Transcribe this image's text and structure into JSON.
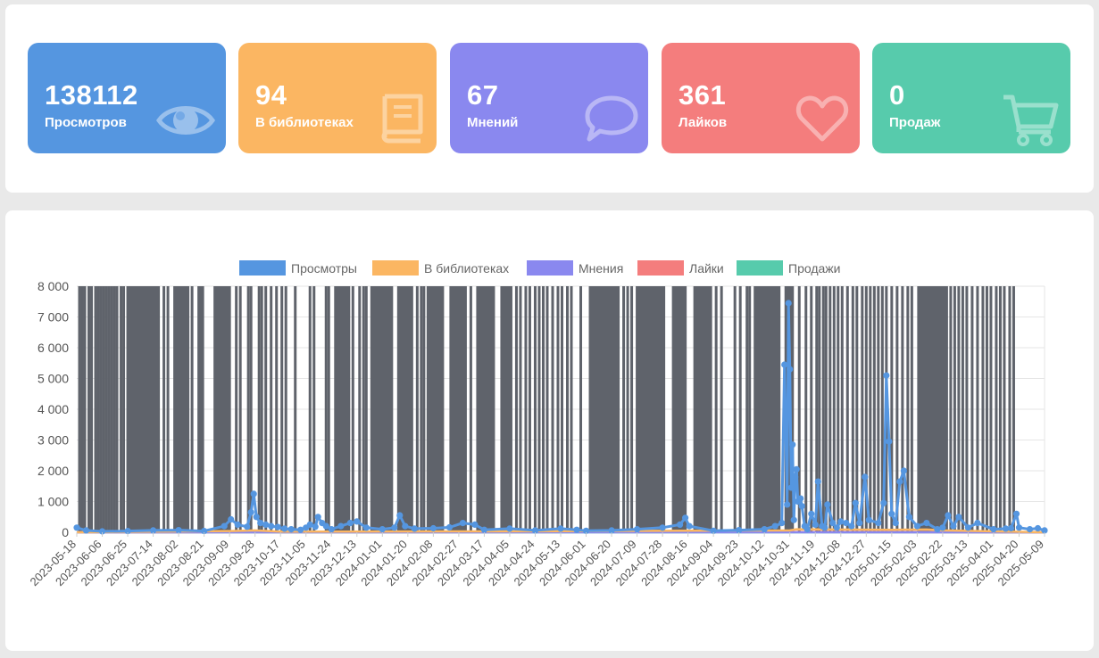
{
  "stats": [
    {
      "value": "138112",
      "label": "Просмотров",
      "color": "#5596e0",
      "icon": "eye-icon"
    },
    {
      "value": "94",
      "label": "В библиотеках",
      "color": "#fbb662",
      "icon": "book-icon"
    },
    {
      "value": "67",
      "label": "Мнений",
      "color": "#8a88ef",
      "icon": "chat-bubble-icon"
    },
    {
      "value": "361",
      "label": "Лайков",
      "color": "#f47d7d",
      "icon": "heart-icon"
    },
    {
      "value": "0",
      "label": "Продаж",
      "color": "#57cbac",
      "icon": "cart-icon"
    }
  ],
  "chart_data": {
    "type": "line",
    "legend": [
      {
        "name": "Просмотры",
        "color": "#5596e0"
      },
      {
        "name": "В библиотеках",
        "color": "#fbb662"
      },
      {
        "name": "Мнения",
        "color": "#8a88ef"
      },
      {
        "name": "Лайки",
        "color": "#f47d7d"
      },
      {
        "name": "Продажи",
        "color": "#57cbac"
      }
    ],
    "legend_position": "top",
    "grid": true,
    "ylim": [
      0,
      8000
    ],
    "y_ticks": [
      "8 000",
      "7 000",
      "6 000",
      "5 000",
      "4 000",
      "3 000",
      "2 000",
      "1 000",
      "0"
    ],
    "x_range": [
      "2023-05-18",
      "2025-05-09"
    ],
    "x_ticks": [
      "2023-05-18",
      "2023-06-06",
      "2023-06-25",
      "2023-07-14",
      "2023-08-02",
      "2023-08-21",
      "2023-09-09",
      "2023-09-28",
      "2023-10-17",
      "2023-11-05",
      "2023-11-24",
      "2023-12-13",
      "2024-01-01",
      "2024-01-20",
      "2024-02-08",
      "2024-02-27",
      "2024-03-17",
      "2024-04-05",
      "2024-04-24",
      "2024-05-13",
      "2024-06-01",
      "2024-06-20",
      "2024-07-09",
      "2024-07-28",
      "2024-08-16",
      "2024-09-04",
      "2024-09-23",
      "2024-10-12",
      "2024-10-31",
      "2024-11-19",
      "2024-12-08",
      "2024-12-27",
      "2025-01-15",
      "2025-02-03",
      "2025-02-22",
      "2025-03-13",
      "2025-04-01",
      "2025-04-20",
      "2025-05-09"
    ],
    "overlay_color": "#5f636b",
    "overlay_dense_ranges": [
      [
        "2023-06-24",
        "2023-07-19"
      ],
      [
        "2023-07-29",
        "2023-08-10"
      ],
      [
        "2023-08-16",
        "2023-08-21"
      ],
      [
        "2023-08-28",
        "2023-09-10"
      ],
      [
        "2023-11-26",
        "2023-12-08"
      ],
      [
        "2023-12-23",
        "2024-01-09"
      ],
      [
        "2024-01-12",
        "2024-01-24"
      ],
      [
        "2024-02-03",
        "2024-02-16"
      ],
      [
        "2024-02-20",
        "2024-03-04"
      ],
      [
        "2024-03-11",
        "2024-03-25"
      ],
      [
        "2024-03-29",
        "2024-04-07"
      ],
      [
        "2024-06-03",
        "2024-06-26"
      ],
      [
        "2024-07-08",
        "2024-07-30"
      ],
      [
        "2024-08-04",
        "2024-08-15"
      ],
      [
        "2024-08-20",
        "2024-09-03"
      ],
      [
        "2024-10-04",
        "2024-10-24"
      ],
      [
        "2024-10-27",
        "2024-11-03"
      ],
      [
        "2025-02-03",
        "2025-02-26"
      ]
    ],
    "overlay_lines": [
      "2023-05-20",
      "2023-05-22",
      "2023-05-24",
      "2023-05-27",
      "2023-05-29",
      "2023-06-01",
      "2023-06-03",
      "2023-06-05",
      "2023-06-07",
      "2023-06-09",
      "2023-06-11",
      "2023-06-13",
      "2023-06-15",
      "2023-06-17",
      "2023-06-20",
      "2023-06-22",
      "2023-07-22",
      "2023-07-25",
      "2023-08-12",
      "2023-09-14",
      "2023-09-17",
      "2023-09-23",
      "2023-09-25",
      "2023-10-01",
      "2023-10-03",
      "2023-10-06",
      "2023-10-10",
      "2023-10-14",
      "2023-10-18",
      "2023-10-21",
      "2023-10-28",
      "2023-11-08",
      "2023-11-11",
      "2023-11-20",
      "2023-11-22",
      "2023-12-10",
      "2023-12-15",
      "2023-12-18",
      "2023-12-20",
      "2024-01-27",
      "2024-01-30",
      "2024-02-01",
      "2024-03-07",
      "2024-04-10",
      "2024-04-13",
      "2024-04-17",
      "2024-04-20",
      "2024-04-24",
      "2024-04-27",
      "2024-04-30",
      "2024-05-03",
      "2024-05-07",
      "2024-05-11",
      "2024-05-14",
      "2024-05-18",
      "2024-05-21",
      "2024-05-28",
      "2024-06-29",
      "2024-07-02",
      "2024-07-05",
      "2024-09-06",
      "2024-09-10",
      "2024-09-20",
      "2024-09-24",
      "2024-09-29",
      "2024-10-01",
      "2024-11-07",
      "2024-11-12",
      "2024-11-16",
      "2024-11-20",
      "2024-11-22",
      "2024-11-25",
      "2024-11-27",
      "2024-11-30",
      "2024-12-03",
      "2024-12-06",
      "2024-12-09",
      "2024-12-13",
      "2024-12-17",
      "2024-12-20",
      "2024-12-24",
      "2024-12-27",
      "2024-12-30",
      "2025-01-02",
      "2025-01-05",
      "2025-01-08",
      "2025-01-11",
      "2025-01-15",
      "2025-01-19",
      "2025-01-23",
      "2025-01-27",
      "2025-01-30",
      "2025-02-28",
      "2025-03-03",
      "2025-03-06",
      "2025-03-09",
      "2025-03-12",
      "2025-03-16",
      "2025-03-20",
      "2025-03-24",
      "2025-03-27",
      "2025-03-30",
      "2025-04-03",
      "2025-04-06",
      "2025-04-09",
      "2025-04-13",
      "2025-04-16"
    ],
    "series": [
      {
        "name": "Просмотры",
        "color": "#5596e0",
        "points": [
          [
            "2023-05-18",
            150
          ],
          [
            "2023-05-25",
            60
          ],
          [
            "2023-06-06",
            30
          ],
          [
            "2023-06-25",
            40
          ],
          [
            "2023-07-14",
            60
          ],
          [
            "2023-08-02",
            70
          ],
          [
            "2023-08-21",
            40
          ],
          [
            "2023-09-05",
            200
          ],
          [
            "2023-09-10",
            420
          ],
          [
            "2023-09-15",
            250
          ],
          [
            "2023-09-22",
            180
          ],
          [
            "2023-09-25",
            650
          ],
          [
            "2023-09-27",
            1250
          ],
          [
            "2023-09-29",
            500
          ],
          [
            "2023-10-02",
            300
          ],
          [
            "2023-10-06",
            250
          ],
          [
            "2023-10-10",
            200
          ],
          [
            "2023-10-15",
            170
          ],
          [
            "2023-10-20",
            120
          ],
          [
            "2023-10-25",
            100
          ],
          [
            "2023-11-01",
            80
          ],
          [
            "2023-11-05",
            150
          ],
          [
            "2023-11-08",
            250
          ],
          [
            "2023-11-12",
            180
          ],
          [
            "2023-11-14",
            500
          ],
          [
            "2023-11-17",
            300
          ],
          [
            "2023-11-20",
            200
          ],
          [
            "2023-11-24",
            100
          ],
          [
            "2023-12-01",
            200
          ],
          [
            "2023-12-08",
            300
          ],
          [
            "2023-12-13",
            350
          ],
          [
            "2023-12-20",
            150
          ],
          [
            "2024-01-01",
            100
          ],
          [
            "2024-01-10",
            150
          ],
          [
            "2024-01-14",
            550
          ],
          [
            "2024-01-18",
            200
          ],
          [
            "2024-01-25",
            120
          ],
          [
            "2024-02-08",
            130
          ],
          [
            "2024-02-20",
            160
          ],
          [
            "2024-03-01",
            300
          ],
          [
            "2024-03-10",
            250
          ],
          [
            "2024-03-17",
            80
          ],
          [
            "2024-04-05",
            120
          ],
          [
            "2024-04-24",
            60
          ],
          [
            "2024-05-13",
            120
          ],
          [
            "2024-05-25",
            80
          ],
          [
            "2024-06-01",
            50
          ],
          [
            "2024-06-20",
            60
          ],
          [
            "2024-07-09",
            100
          ],
          [
            "2024-07-28",
            150
          ],
          [
            "2024-08-10",
            250
          ],
          [
            "2024-08-14",
            470
          ],
          [
            "2024-08-17",
            200
          ],
          [
            "2024-09-04",
            50
          ],
          [
            "2024-09-23",
            70
          ],
          [
            "2024-10-12",
            100
          ],
          [
            "2024-10-20",
            200
          ],
          [
            "2024-10-25",
            300
          ],
          [
            "2024-10-27",
            5450
          ],
          [
            "2024-10-29",
            900
          ],
          [
            "2024-10-30",
            7450
          ],
          [
            "2024-10-31",
            5300
          ],
          [
            "2024-11-01",
            1450
          ],
          [
            "2024-11-02",
            2850
          ],
          [
            "2024-11-03",
            400
          ],
          [
            "2024-11-04",
            1800
          ],
          [
            "2024-11-05",
            2050
          ],
          [
            "2024-11-06",
            1000
          ],
          [
            "2024-11-08",
            1100
          ],
          [
            "2024-11-09",
            850
          ],
          [
            "2024-11-11",
            200
          ],
          [
            "2024-11-13",
            100
          ],
          [
            "2024-11-16",
            600
          ],
          [
            "2024-11-19",
            250
          ],
          [
            "2024-11-21",
            1650
          ],
          [
            "2024-11-24",
            200
          ],
          [
            "2024-11-26",
            150
          ],
          [
            "2024-11-28",
            900
          ],
          [
            "2024-12-02",
            300
          ],
          [
            "2024-12-05",
            150
          ],
          [
            "2024-12-08",
            350
          ],
          [
            "2024-12-12",
            300
          ],
          [
            "2024-12-16",
            200
          ],
          [
            "2024-12-19",
            950
          ],
          [
            "2024-12-22",
            300
          ],
          [
            "2024-12-26",
            1800
          ],
          [
            "2024-12-29",
            400
          ],
          [
            "2025-01-05",
            300
          ],
          [
            "2025-01-09",
            950
          ],
          [
            "2025-01-11",
            5100
          ],
          [
            "2025-01-13",
            2950
          ],
          [
            "2025-01-15",
            600
          ],
          [
            "2025-01-18",
            300
          ],
          [
            "2025-01-21",
            1650
          ],
          [
            "2025-01-24",
            2000
          ],
          [
            "2025-01-28",
            500
          ],
          [
            "2025-02-03",
            200
          ],
          [
            "2025-02-10",
            300
          ],
          [
            "2025-02-18",
            100
          ],
          [
            "2025-02-22",
            150
          ],
          [
            "2025-02-26",
            550
          ],
          [
            "2025-03-02",
            200
          ],
          [
            "2025-03-06",
            500
          ],
          [
            "2025-03-13",
            150
          ],
          [
            "2025-03-20",
            300
          ],
          [
            "2025-04-01",
            100
          ],
          [
            "2025-04-10",
            120
          ],
          [
            "2025-04-14",
            130
          ],
          [
            "2025-04-18",
            600
          ],
          [
            "2025-04-20",
            150
          ],
          [
            "2025-04-28",
            100
          ],
          [
            "2025-05-04",
            130
          ],
          [
            "2025-05-09",
            60
          ]
        ]
      },
      {
        "name": "В библиотеках",
        "color": "#fbb662",
        "points": [
          [
            "2023-05-18",
            0
          ],
          [
            "2023-09-10",
            40
          ],
          [
            "2023-09-28",
            60
          ],
          [
            "2023-10-17",
            20
          ],
          [
            "2024-03-17",
            30
          ],
          [
            "2024-10-31",
            60
          ],
          [
            "2024-11-05",
            100
          ],
          [
            "2025-01-15",
            80
          ],
          [
            "2025-02-10",
            90
          ],
          [
            "2025-02-22",
            60
          ],
          [
            "2025-05-09",
            0
          ]
        ]
      },
      {
        "name": "Мнения",
        "color": "#8a88ef",
        "points": [
          [
            "2023-05-18",
            0
          ],
          [
            "2025-05-09",
            0
          ]
        ]
      },
      {
        "name": "Лайки",
        "color": "#f47d7d",
        "points": [
          [
            "2023-05-18",
            0
          ],
          [
            "2024-10-31",
            10
          ],
          [
            "2025-05-09",
            0
          ]
        ]
      },
      {
        "name": "Продажи",
        "color": "#57cbac",
        "points": [
          [
            "2023-05-18",
            0
          ],
          [
            "2025-05-09",
            0
          ]
        ]
      }
    ]
  }
}
